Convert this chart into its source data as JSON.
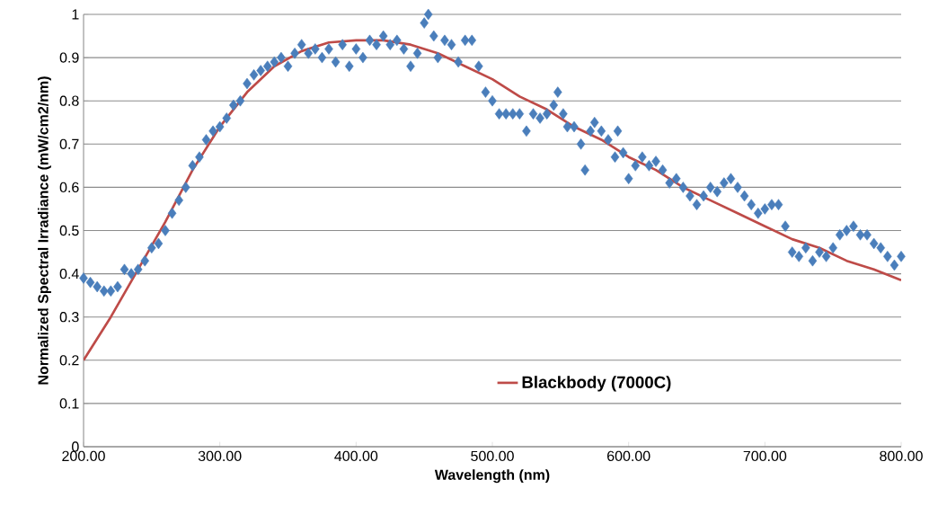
{
  "chart_data": {
    "type": "scatter",
    "xlabel": "Wavelength (nm)",
    "ylabel": "Normalized Spectral Irradiance (mW/cm2/nm)",
    "xlim": [
      200,
      800
    ],
    "ylim": [
      0,
      1
    ],
    "xticks": [
      {
        "value": 200,
        "label": "200.00"
      },
      {
        "value": 300,
        "label": "300.00"
      },
      {
        "value": 400,
        "label": "400.00"
      },
      {
        "value": 500,
        "label": "500.00"
      },
      {
        "value": 600,
        "label": "600.00"
      },
      {
        "value": 700,
        "label": "700.00"
      },
      {
        "value": 800,
        "label": "800.00"
      }
    ],
    "yticks": [
      0,
      0.1,
      0.2,
      0.3,
      0.4,
      0.5,
      0.6,
      0.7,
      0.8,
      0.9,
      1
    ],
    "grid": "y",
    "legend": "bottom",
    "series": [
      {
        "marker": "diamond",
        "color": "#4a7ebb",
        "x": [
          200,
          205,
          210,
          215,
          220,
          225,
          230,
          235,
          240,
          245,
          250,
          255,
          260,
          265,
          270,
          275,
          280,
          285,
          290,
          295,
          300,
          305,
          310,
          315,
          320,
          325,
          330,
          335,
          340,
          345,
          350,
          355,
          360,
          365,
          370,
          375,
          380,
          385,
          390,
          395,
          400,
          405,
          410,
          415,
          420,
          425,
          430,
          435,
          440,
          445,
          450,
          453,
          457,
          460,
          465,
          470,
          475,
          480,
          485,
          490,
          495,
          500,
          505,
          510,
          515,
          520,
          525,
          530,
          535,
          540,
          545,
          548,
          552,
          555,
          560,
          565,
          568,
          572,
          575,
          580,
          585,
          590,
          592,
          596,
          600,
          605,
          610,
          615,
          620,
          625,
          630,
          635,
          640,
          645,
          650,
          655,
          660,
          665,
          670,
          675,
          680,
          685,
          690,
          695,
          700,
          705,
          710,
          715,
          720,
          725,
          730,
          735,
          740,
          745,
          750,
          755,
          760,
          765,
          770,
          775,
          780,
          785,
          790,
          795,
          800
        ],
        "values": [
          0.39,
          0.38,
          0.37,
          0.36,
          0.36,
          0.37,
          0.41,
          0.4,
          0.41,
          0.43,
          0.46,
          0.47,
          0.5,
          0.54,
          0.57,
          0.6,
          0.65,
          0.67,
          0.71,
          0.73,
          0.74,
          0.76,
          0.79,
          0.8,
          0.84,
          0.86,
          0.87,
          0.88,
          0.89,
          0.9,
          0.88,
          0.91,
          0.93,
          0.91,
          0.92,
          0.9,
          0.92,
          0.89,
          0.93,
          0.88,
          0.92,
          0.9,
          0.94,
          0.93,
          0.95,
          0.93,
          0.94,
          0.92,
          0.88,
          0.91,
          0.98,
          1.0,
          0.95,
          0.9,
          0.94,
          0.93,
          0.89,
          0.94,
          0.94,
          0.88,
          0.82,
          0.8,
          0.77,
          0.77,
          0.77,
          0.77,
          0.73,
          0.77,
          0.76,
          0.77,
          0.79,
          0.82,
          0.77,
          0.74,
          0.74,
          0.7,
          0.64,
          0.73,
          0.75,
          0.73,
          0.71,
          0.67,
          0.73,
          0.68,
          0.62,
          0.65,
          0.67,
          0.65,
          0.66,
          0.64,
          0.61,
          0.62,
          0.6,
          0.58,
          0.56,
          0.58,
          0.6,
          0.59,
          0.61,
          0.62,
          0.6,
          0.58,
          0.56,
          0.54,
          0.55,
          0.56,
          0.56,
          0.51,
          0.45,
          0.44,
          0.46,
          0.43,
          0.45,
          0.44,
          0.46,
          0.49,
          0.5,
          0.51,
          0.49,
          0.49,
          0.47,
          0.46,
          0.44,
          0.42,
          0.44
        ]
      },
      {
        "type": "line",
        "name": "Blackbody (7000C)",
        "color": "#be4b48",
        "marker": "none",
        "line_style": "solid",
        "x": [
          200,
          220,
          240,
          260,
          280,
          300,
          320,
          340,
          360,
          380,
          400,
          420,
          440,
          460,
          480,
          500,
          520,
          540,
          560,
          580,
          600,
          620,
          640,
          660,
          680,
          700,
          720,
          740,
          760,
          780,
          800
        ],
        "values": [
          0.2,
          0.3,
          0.41,
          0.52,
          0.64,
          0.74,
          0.82,
          0.88,
          0.915,
          0.935,
          0.94,
          0.94,
          0.93,
          0.91,
          0.88,
          0.85,
          0.81,
          0.78,
          0.74,
          0.71,
          0.67,
          0.64,
          0.6,
          0.57,
          0.54,
          0.51,
          0.48,
          0.46,
          0.43,
          0.41,
          0.385
        ]
      }
    ]
  }
}
